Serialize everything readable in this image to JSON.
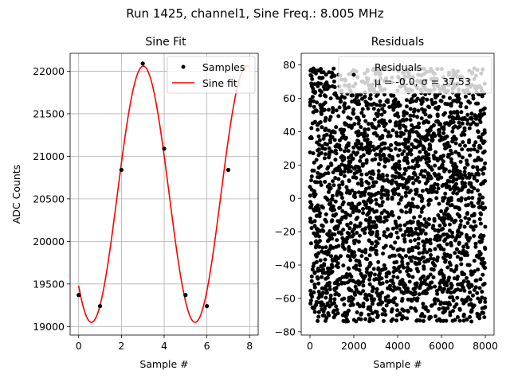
{
  "figure": {
    "suptitle": "Run 1425, channel1, Sine Freq.: 8.005 MHz"
  },
  "chart_data": [
    {
      "type": "line",
      "title": "Sine Fit",
      "xlabel": "Sample #",
      "ylabel": "ADC Counts",
      "xlim": [
        -0.4,
        8.4
      ],
      "ylim": [
        18900,
        22210
      ],
      "xticks": [
        0,
        2,
        4,
        6,
        8
      ],
      "yticks": [
        19000,
        19500,
        20000,
        20500,
        21000,
        21500,
        22000
      ],
      "grid": true,
      "legend_position": "top-right",
      "series": [
        {
          "name": "Samples",
          "style": "points",
          "color": "#000000",
          "x": [
            0,
            1,
            2,
            3,
            4,
            5,
            6,
            7
          ],
          "y": [
            19370,
            19240,
            20840,
            22090,
            21090,
            19370,
            19240,
            20840
          ]
        },
        {
          "name": "Sine fit",
          "style": "line",
          "color": "#ff0000",
          "model": {
            "form": "offset + amplitude*sin(2*pi*(x - x0)/period)",
            "offset": 20555,
            "amplitude": 1505,
            "period": 4.85,
            "x0": 1.81,
            "x_range": [
              0,
              7.95
            ]
          }
        }
      ]
    },
    {
      "type": "scatter",
      "title": "Residuals",
      "xlabel": "Sample #",
      "ylabel": "",
      "xlim": [
        -400,
        8400
      ],
      "ylim": [
        -82,
        87
      ],
      "xticks": [
        0,
        2000,
        4000,
        6000,
        8000
      ],
      "yticks": [
        -80,
        -60,
        -40,
        -20,
        0,
        20,
        40,
        60,
        80
      ],
      "grid": false,
      "legend_position": "top-right",
      "series": [
        {
          "name": "Residuals",
          "style": "points",
          "color": "#000000",
          "count": 8000,
          "x_range": [
            0,
            8000
          ],
          "y_range": [
            -74,
            78
          ],
          "summary": {
            "mean": -0.0,
            "std": 37.53
          }
        }
      ],
      "legend_stats": "μ = -0.0, σ = 37.53"
    }
  ]
}
